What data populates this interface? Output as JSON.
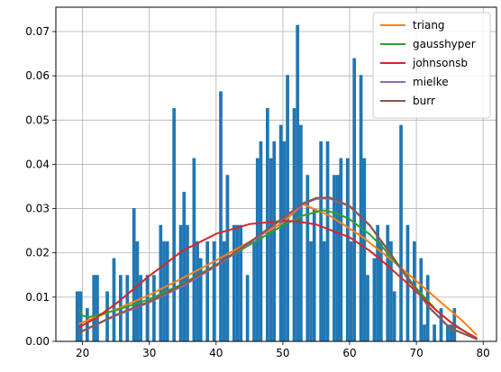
{
  "chart_data": {
    "type": "bar",
    "title": "",
    "xlabel": "",
    "ylabel": "",
    "xlim": [
      16,
      82
    ],
    "ylim": [
      0,
      0.0755
    ],
    "grid": true,
    "legend_position": "top-right",
    "x_ticks": [
      20,
      30,
      40,
      50,
      60,
      70,
      80
    ],
    "x_tick_labels": [
      "20",
      "30",
      "40",
      "50",
      "60",
      "70",
      "80"
    ],
    "y_ticks": [
      0.0,
      0.01,
      0.02,
      0.03,
      0.04,
      0.05,
      0.06,
      0.07
    ],
    "y_tick_labels": [
      "0.00",
      "0.01",
      "0.02",
      "0.03",
      "0.04",
      "0.05",
      "0.06",
      "0.07"
    ],
    "bar_color": "#1f77b4",
    "bar_width": 0.5,
    "histogram": {
      "x": [
        19.2,
        19.7,
        20.7,
        21.7,
        22.2,
        23.7,
        24.7,
        25.7,
        26.7,
        27.7,
        28.2,
        28.7,
        29.7,
        30.7,
        31.7,
        32.2,
        32.7,
        33.7,
        34.7,
        35.2,
        35.7,
        36.7,
        37.2,
        37.7,
        38.7,
        39.7,
        40.7,
        41.2,
        41.7,
        42.7,
        43.2,
        43.7,
        44.7,
        45.7,
        46.2,
        46.7,
        47.7,
        48.2,
        48.7,
        49.7,
        50.2,
        50.7,
        51.7,
        52.2,
        52.7,
        53.7,
        54.2,
        54.7,
        55.7,
        56.2,
        56.7,
        57.7,
        58.2,
        58.7,
        59.7,
        60.2,
        60.7,
        61.7,
        62.2,
        62.7,
        63.7,
        64.2,
        64.7,
        65.7,
        66.2,
        66.7,
        67.7,
        68.7,
        69.7,
        70.7,
        71.2,
        71.7,
        72.7,
        73.7,
        74.7,
        75.2,
        75.7,
        76.7,
        77.7,
        78.7
      ],
      "y": [
        0.0113,
        0.0113,
        0.0075,
        0.015,
        0.015,
        0.0113,
        0.0188,
        0.015,
        0.015,
        0.0301,
        0.0226,
        0.015,
        0.015,
        0.015,
        0.0263,
        0.0226,
        0.0226,
        0.0527,
        0.0263,
        0.0338,
        0.0263,
        0.0414,
        0.0226,
        0.0188,
        0.0226,
        0.0226,
        0.0565,
        0.0226,
        0.0376,
        0.0263,
        0.0263,
        0.0263,
        0.015,
        0.0226,
        0.0414,
        0.0452,
        0.0527,
        0.0414,
        0.0452,
        0.0489,
        0.0452,
        0.0602,
        0.0527,
        0.0715,
        0.0489,
        0.0376,
        0.0226,
        0.0301,
        0.0452,
        0.0226,
        0.0452,
        0.0376,
        0.0376,
        0.0414,
        0.0414,
        0.0226,
        0.064,
        0.0602,
        0.0414,
        0.015,
        0.0188,
        0.0263,
        0.0226,
        0.0263,
        0.0226,
        0.0113,
        0.0489,
        0.0263,
        0.0226,
        0.0188,
        0.0038,
        0.015,
        0.0038,
        0.0075,
        0.0038,
        0.0038,
        0.0075,
        0.0,
        0.0,
        0.0
      ]
    },
    "series": [
      {
        "name": "triang",
        "color": "#ff7f0e",
        "x": [
          19.5,
          25,
          30,
          35,
          40,
          45,
          50,
          53,
          57,
          62,
          67,
          72,
          77,
          79
        ],
        "y": [
          0.004,
          0.0072,
          0.0105,
          0.0143,
          0.0183,
          0.0225,
          0.0268,
          0.031,
          0.0284,
          0.0235,
          0.0175,
          0.011,
          0.0045,
          0.0015
        ]
      },
      {
        "name": "gausshyper",
        "color": "#2ca02c",
        "x": [
          19.5,
          20,
          21,
          25,
          30,
          35,
          40,
          45,
          50,
          53,
          56,
          58,
          60,
          63,
          65,
          68,
          70,
          73,
          75,
          78,
          79
        ],
        "y": [
          0.007,
          0.0058,
          0.0055,
          0.007,
          0.0095,
          0.013,
          0.0173,
          0.0218,
          0.0262,
          0.0284,
          0.0296,
          0.029,
          0.0276,
          0.0242,
          0.0212,
          0.0158,
          0.012,
          0.007,
          0.0045,
          0.0015,
          0.0008
        ]
      },
      {
        "name": "johnsonsb",
        "color": "#d62728",
        "x": [
          19.5,
          22,
          25,
          30,
          35,
          40,
          45,
          50,
          52,
          55,
          60,
          63,
          65,
          68,
          70,
          73,
          76,
          79
        ],
        "y": [
          0.0032,
          0.0053,
          0.0085,
          0.0148,
          0.0205,
          0.0243,
          0.0265,
          0.0272,
          0.0271,
          0.0264,
          0.0235,
          0.0205,
          0.018,
          0.014,
          0.0112,
          0.007,
          0.0033,
          0.0008
        ]
      },
      {
        "name": "mielke",
        "color": "#9467bd",
        "x": [
          19.5,
          25,
          30,
          35,
          40,
          45,
          50,
          53,
          55,
          57,
          60,
          63,
          66,
          69,
          72,
          75,
          79
        ],
        "y": [
          0.002,
          0.0058,
          0.0088,
          0.0125,
          0.017,
          0.0222,
          0.0277,
          0.031,
          0.0322,
          0.0323,
          0.0305,
          0.0262,
          0.02,
          0.0135,
          0.0075,
          0.003,
          0.0005
        ]
      },
      {
        "name": "burr",
        "color": "#8c564b",
        "x": [
          19.5,
          25,
          30,
          35,
          40,
          45,
          50,
          53,
          55,
          57,
          60,
          63,
          66,
          69,
          72,
          75,
          79
        ],
        "y": [
          0.002,
          0.006,
          0.009,
          0.0128,
          0.0172,
          0.0224,
          0.0279,
          0.0312,
          0.0324,
          0.0325,
          0.0306,
          0.0263,
          0.0201,
          0.0136,
          0.0076,
          0.0031,
          0.0005
        ]
      }
    ]
  }
}
